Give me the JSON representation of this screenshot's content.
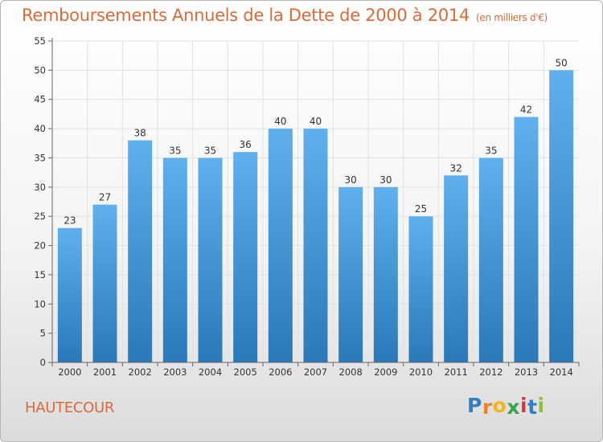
{
  "title": "Remboursements Annuels de la Dette de 2000 à 2014",
  "unit_note": "(en milliers d'€)",
  "commune": "HAUTECOUR",
  "brand": {
    "name": "Proxiti",
    "letters": [
      "P",
      "r",
      "o",
      "x",
      "i",
      "t",
      "i"
    ],
    "letter_colors": [
      "#2e7fc8",
      "#e8842a",
      "#f0b51f",
      "#3aa34a",
      "#d23b3b",
      "#2e7fc8",
      "#8fbd3a"
    ]
  },
  "colors": {
    "title": "#d96a3a",
    "bar_top": "#5fb0ec",
    "bar_bottom": "#2a78b8",
    "grid": "#e2e2e2",
    "axis": "#666666"
  },
  "chart_data": {
    "type": "bar",
    "categories": [
      "2000",
      "2001",
      "2002",
      "2003",
      "2004",
      "2005",
      "2006",
      "2007",
      "2008",
      "2009",
      "2010",
      "2011",
      "2012",
      "2013",
      "2014"
    ],
    "values": [
      23,
      27,
      38,
      35,
      35,
      36,
      40,
      40,
      30,
      30,
      25,
      32,
      35,
      42,
      50
    ],
    "ylim": [
      0,
      55
    ],
    "yticks": [
      0,
      5,
      10,
      15,
      20,
      25,
      30,
      35,
      40,
      45,
      50,
      55
    ],
    "grid": true,
    "data_labels": true
  }
}
